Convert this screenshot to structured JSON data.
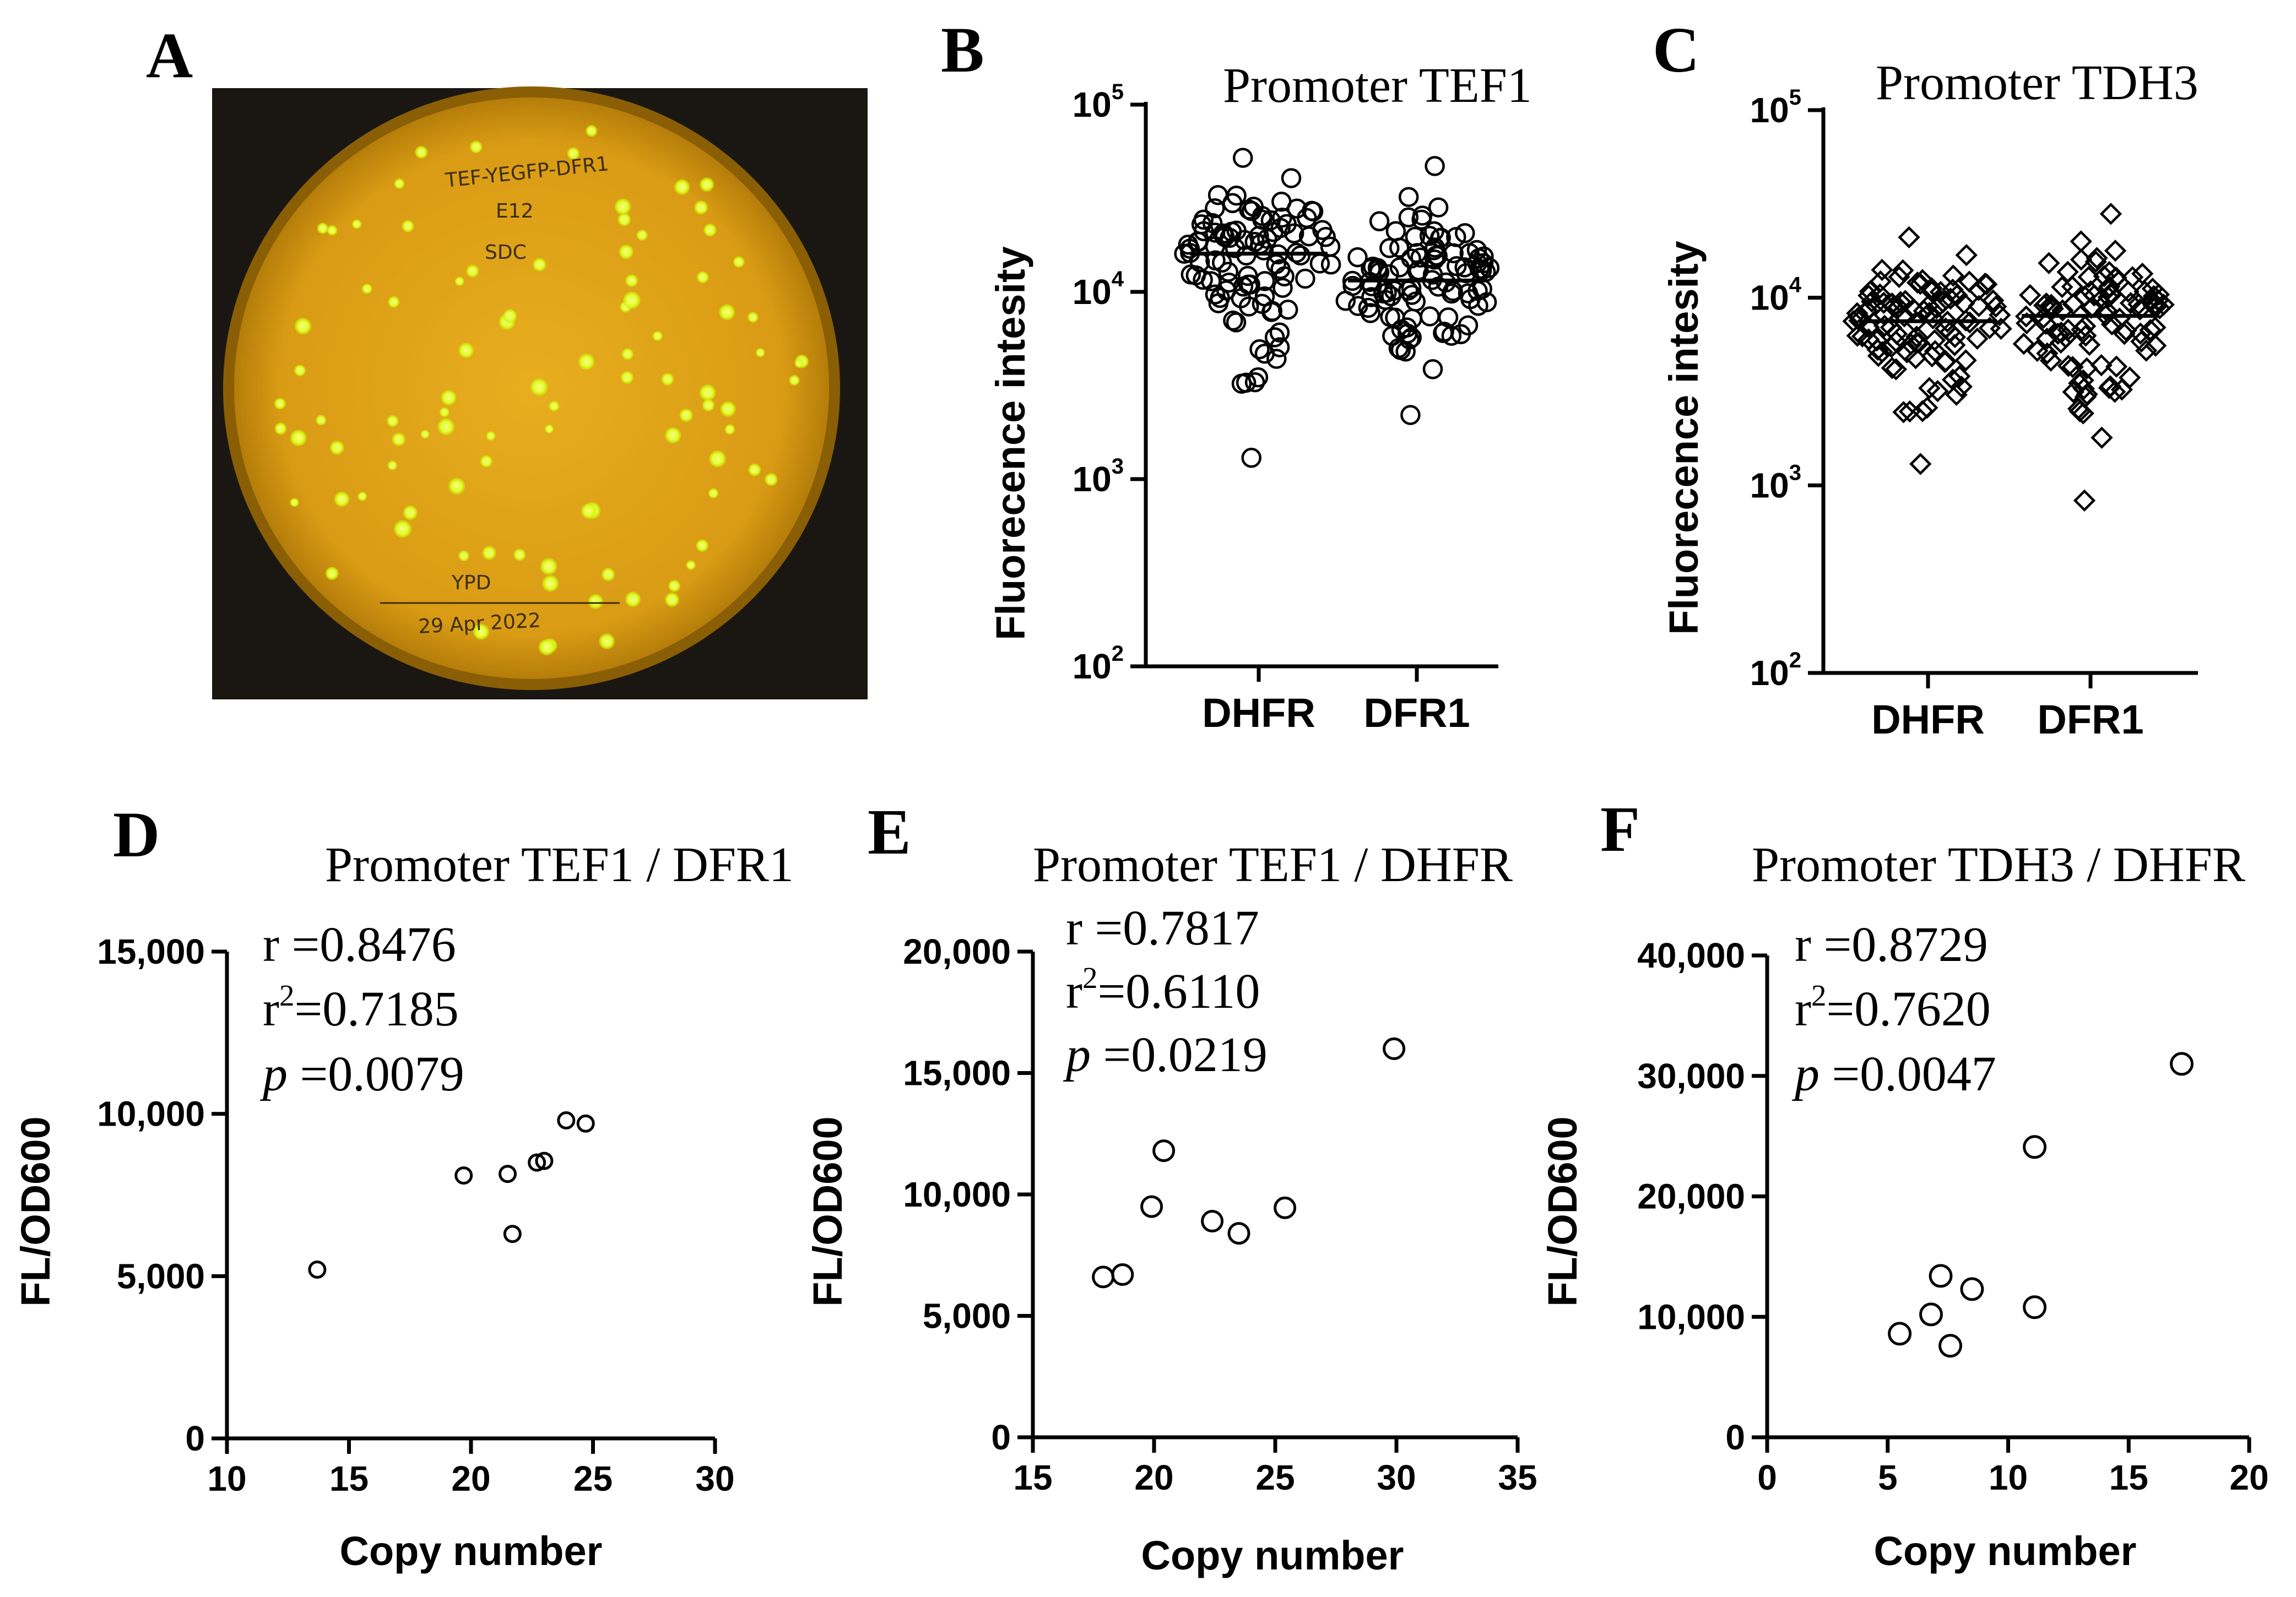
{
  "panels": {
    "A": {
      "letter": "A"
    },
    "B": {
      "letter": "B"
    },
    "C": {
      "letter": "C"
    },
    "D": {
      "letter": "D"
    },
    "E": {
      "letter": "E"
    },
    "F": {
      "letter": "F"
    }
  },
  "plate": {
    "label_line1": "TEF-YEGFP-DFR1",
    "label_line2": "E12",
    "label_line3": "SDC",
    "label_line4": "YPD",
    "label_line5": "29 Apr 2022"
  },
  "colors": {
    "plate_bg": "#1a1712",
    "agar": "#e0a41a",
    "colony": "#e9ff3a"
  },
  "chart_data": [
    {
      "id": "B",
      "type": "scatter",
      "title": "Promoter TEF1",
      "ylabel": "Fluorecence intesity",
      "xlabel": "",
      "yscale": "log",
      "ylim": [
        100,
        100000
      ],
      "yticks": [
        {
          "value": 100,
          "base": "10",
          "exp": "2"
        },
        {
          "value": 1000,
          "base": "10",
          "exp": "3"
        },
        {
          "value": 10000,
          "base": "10",
          "exp": "4"
        },
        {
          "value": 100000,
          "base": "10",
          "exp": "5"
        }
      ],
      "categories": [
        "DHFR",
        "DFR1"
      ],
      "marker": "circle",
      "groups": [
        {
          "name": "DHFR",
          "mean": 16000,
          "n": 100,
          "min": 1300,
          "max": 52000
        },
        {
          "name": "DFR1",
          "mean": 11500,
          "n": 100,
          "min": 2200,
          "max": 47000
        }
      ]
    },
    {
      "id": "C",
      "type": "scatter",
      "title": "Promoter TDH3",
      "ylabel": "Fluorecence intesity",
      "xlabel": "",
      "yscale": "log",
      "ylim": [
        100,
        100000
      ],
      "yticks": [
        {
          "value": 100,
          "base": "10",
          "exp": "2"
        },
        {
          "value": 1000,
          "base": "10",
          "exp": "3"
        },
        {
          "value": 10000,
          "base": "10",
          "exp": "4"
        },
        {
          "value": 100000,
          "base": "10",
          "exp": "5"
        }
      ],
      "categories": [
        "DHFR",
        "DFR1"
      ],
      "marker": "diamond",
      "groups": [
        {
          "name": "DHFR",
          "mean": 7500,
          "n": 100,
          "min": 1300,
          "max": 21000
        },
        {
          "name": "DFR1",
          "mean": 8000,
          "n": 100,
          "min": 830,
          "max": 28000
        }
      ]
    },
    {
      "id": "D",
      "type": "scatter",
      "title": "Promoter TEF1 / DFR1",
      "xlabel": "Copy number",
      "ylabel": "FL/OD600",
      "xlim": [
        10,
        30
      ],
      "ylim": [
        0,
        15000
      ],
      "xticks": [
        "10",
        "15",
        "20",
        "25",
        "30"
      ],
      "yticks": [
        "0",
        "5,000",
        "10,000",
        "15,000"
      ],
      "stats": {
        "r": "r =0.8476",
        "r2_prefix": "r",
        "r2_sup": "2",
        "r2_value": "=0.7185",
        "p_label": "p",
        "p_value": " =0.0079"
      },
      "points": [
        {
          "x": 13.7,
          "y": 5200
        },
        {
          "x": 19.7,
          "y": 8100
        },
        {
          "x": 21.5,
          "y": 8150
        },
        {
          "x": 21.7,
          "y": 6300
        },
        {
          "x": 22.7,
          "y": 8500
        },
        {
          "x": 23.0,
          "y": 8550
        },
        {
          "x": 23.9,
          "y": 9800
        },
        {
          "x": 24.7,
          "y": 9700
        }
      ]
    },
    {
      "id": "E",
      "type": "scatter",
      "title": "Promoter TEF1 / DHFR",
      "xlabel": "Copy number",
      "ylabel": "FL/OD600",
      "xlim": [
        15,
        35
      ],
      "ylim": [
        0,
        20000
      ],
      "xticks": [
        "15",
        "20",
        "25",
        "30",
        "35"
      ],
      "yticks": [
        "0",
        "5,000",
        "10,000",
        "15,000",
        "20,000"
      ],
      "stats": {
        "r": "r =0.7817",
        "r2_prefix": "r",
        "r2_sup": "2",
        "r2_value": "=0.6110",
        "p_label": "p",
        "p_value": " =0.0219"
      },
      "points": [
        {
          "x": 17.9,
          "y": 6600
        },
        {
          "x": 18.7,
          "y": 6700
        },
        {
          "x": 19.9,
          "y": 9500
        },
        {
          "x": 20.4,
          "y": 11800
        },
        {
          "x": 22.4,
          "y": 8900
        },
        {
          "x": 23.5,
          "y": 8400
        },
        {
          "x": 25.4,
          "y": 9450
        },
        {
          "x": 29.9,
          "y": 16000
        }
      ]
    },
    {
      "id": "F",
      "type": "scatter",
      "title": "Promoter TDH3 / DHFR",
      "xlabel": "Copy number",
      "ylabel": "FL/OD600",
      "xlim": [
        0,
        20
      ],
      "ylim": [
        0,
        40000
      ],
      "xticks": [
        "0",
        "5",
        "10",
        "15",
        "20"
      ],
      "yticks": [
        "0",
        "10,000",
        "20,000",
        "30,000",
        "40,000"
      ],
      "stats": {
        "r": "r =0.8729",
        "r2_prefix": "r",
        "r2_sup": "2",
        "r2_value": "=0.7620",
        "p_label": "p",
        "p_value": " =0.0047"
      },
      "points": [
        {
          "x": 5.5,
          "y": 8600
        },
        {
          "x": 6.8,
          "y": 10200
        },
        {
          "x": 7.2,
          "y": 13400
        },
        {
          "x": 7.6,
          "y": 7600
        },
        {
          "x": 8.5,
          "y": 12300
        },
        {
          "x": 11.1,
          "y": 24100
        },
        {
          "x": 11.1,
          "y": 10800
        },
        {
          "x": 17.2,
          "y": 31000
        }
      ]
    }
  ]
}
